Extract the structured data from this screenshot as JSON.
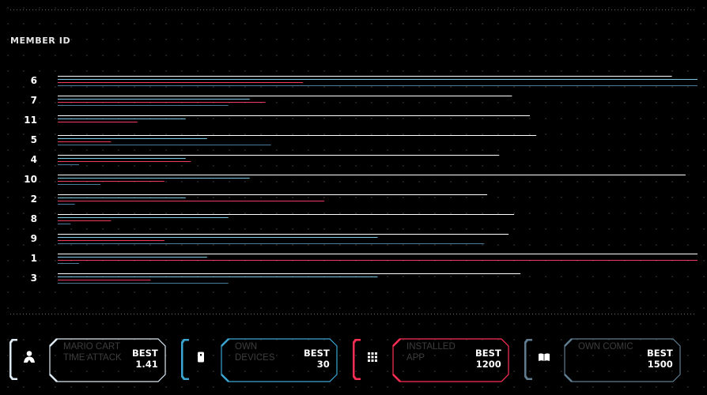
{
  "chart_data": {
    "type": "bar",
    "orientation": "horizontal",
    "title": "MEMBER ID",
    "categories": [
      "6",
      "7",
      "11",
      "5",
      "4",
      "10",
      "2",
      "8",
      "9",
      "1",
      "3"
    ],
    "xlim": [
      0,
      1500
    ],
    "grid": false,
    "legend": "none",
    "series": [
      {
        "color": "#ffffff",
        "values": [
          1440,
          1065,
          1107,
          1122,
          1035,
          1472,
          1007,
          1070,
          1057,
          1500,
          1085
        ]
      },
      {
        "color": "#7ec8e3",
        "values": [
          1500,
          450,
          300,
          350,
          300,
          450,
          300,
          400,
          750,
          350,
          750
        ]
      },
      {
        "color": "#ef3a5d",
        "values": [
          575,
          487,
          187,
          125,
          312,
          250,
          625,
          125,
          250,
          1500,
          218
        ]
      },
      {
        "color": "#4a7a9a",
        "values": [
          1500,
          400,
          0,
          500,
          50,
          100,
          40,
          30,
          1000,
          50,
          400
        ]
      }
    ]
  },
  "cards": [
    {
      "name": "MARIO CART TIME ATTACK",
      "best_label": "BEST",
      "best_value": "1.41",
      "icon": "person-icon",
      "color": "#dce9f2"
    },
    {
      "name": "OWN DEVICES",
      "best_label": "BEST",
      "best_value": "30",
      "icon": "device-icon",
      "color": "#3aa6d1"
    },
    {
      "name": "INSTALLED APP",
      "best_label": "BEST",
      "best_value": "1200",
      "icon": "apps-grid-icon",
      "color": "#ff2e55"
    },
    {
      "name": "OWN COMIC",
      "best_label": "BEST",
      "best_value": "1500",
      "icon": "book-icon",
      "color": "#5f7b8f"
    }
  ]
}
